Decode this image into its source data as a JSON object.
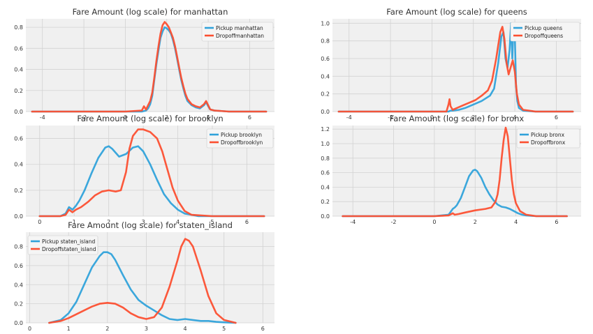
{
  "chart_data": [
    {
      "type": "line",
      "title": "Fare Amount (log scale) for manhattan",
      "xlim": [
        -4.8,
        7.2
      ],
      "ylim": [
        0,
        0.88
      ],
      "xticks": [
        "-4",
        "-2",
        "0",
        "2",
        "4",
        "6"
      ],
      "xtick_values": [
        -4,
        -2,
        0,
        2,
        4,
        6
      ],
      "yticks": [
        "0.0",
        "0.2",
        "0.4",
        "0.6",
        "0.8"
      ],
      "ytick_values": [
        0,
        0.2,
        0.4,
        0.6,
        0.8
      ],
      "legend": "top-right",
      "grid": true,
      "series": [
        {
          "name": "Pickup manhattan",
          "color": "#30a2da",
          "x": [
            -4.5,
            0.0,
            0.8,
            1.0,
            1.1,
            1.2,
            1.3,
            1.4,
            1.5,
            1.6,
            1.7,
            1.8,
            1.9,
            2.0,
            2.1,
            2.2,
            2.3,
            2.4,
            2.5,
            2.6,
            2.7,
            2.8,
            2.9,
            3.0,
            3.2,
            3.4,
            3.6,
            3.8,
            3.9,
            4.0,
            4.1,
            4.3,
            5.0,
            6.8
          ],
          "y": [
            0,
            0,
            0,
            0.01,
            0.03,
            0.07,
            0.15,
            0.3,
            0.45,
            0.58,
            0.7,
            0.76,
            0.8,
            0.79,
            0.77,
            0.74,
            0.68,
            0.6,
            0.5,
            0.4,
            0.3,
            0.22,
            0.15,
            0.1,
            0.06,
            0.04,
            0.03,
            0.06,
            0.09,
            0.05,
            0.02,
            0.01,
            0,
            0
          ]
        },
        {
          "name": "Dropoffmanhattan",
          "color": "#fc4f30",
          "x": [
            -4.5,
            0.0,
            0.8,
            0.9,
            1.0,
            1.1,
            1.2,
            1.3,
            1.4,
            1.5,
            1.6,
            1.7,
            1.8,
            1.9,
            2.0,
            2.1,
            2.2,
            2.3,
            2.4,
            2.5,
            2.6,
            2.7,
            2.8,
            2.9,
            3.0,
            3.2,
            3.4,
            3.6,
            3.8,
            3.9,
            4.0,
            4.1,
            4.3,
            5.0,
            6.8
          ],
          "y": [
            0,
            0,
            0.01,
            0.05,
            0.02,
            0.06,
            0.1,
            0.18,
            0.32,
            0.48,
            0.62,
            0.74,
            0.82,
            0.85,
            0.83,
            0.8,
            0.75,
            0.7,
            0.62,
            0.52,
            0.42,
            0.32,
            0.24,
            0.17,
            0.12,
            0.07,
            0.05,
            0.04,
            0.07,
            0.1,
            0.06,
            0.02,
            0.01,
            0,
            0
          ]
        }
      ]
    },
    {
      "type": "line",
      "title": "Fare Amount (log scale) for queens",
      "xlim": [
        -4.8,
        7.2
      ],
      "ylim": [
        0,
        1.05
      ],
      "xticks": [
        "-4",
        "-2",
        "0",
        "2",
        "4",
        "6"
      ],
      "xtick_values": [
        -4,
        -2,
        0,
        2,
        4,
        6
      ],
      "yticks": [
        "0.0",
        "0.2",
        "0.4",
        "0.6",
        "0.8",
        "1.0"
      ],
      "ytick_values": [
        0,
        0.2,
        0.4,
        0.6,
        0.8,
        1.0
      ],
      "legend": "top-right",
      "grid": true,
      "series": [
        {
          "name": "Pickup queens",
          "color": "#30a2da",
          "x": [
            -4.5,
            0.0,
            0.8,
            0.9,
            1.0,
            1.3,
            1.6,
            2.0,
            2.4,
            2.8,
            3.0,
            3.2,
            3.35,
            3.45,
            3.55,
            3.65,
            3.75,
            3.82,
            3.88,
            3.94,
            4.0,
            4.06,
            4.12,
            4.2,
            4.4,
            5.0,
            6.8
          ],
          "y": [
            0,
            0,
            0,
            0.01,
            0.01,
            0.02,
            0.04,
            0.08,
            0.12,
            0.18,
            0.26,
            0.55,
            0.85,
            0.9,
            0.6,
            0.5,
            0.7,
            1.0,
            0.6,
            1.0,
            0.85,
            0.3,
            0.12,
            0.04,
            0.01,
            0,
            0
          ]
        },
        {
          "name": "Dropoffqueens",
          "color": "#fc4f30",
          "x": [
            -4.5,
            0.0,
            0.7,
            0.8,
            0.85,
            0.9,
            1.0,
            1.2,
            1.5,
            1.8,
            2.1,
            2.4,
            2.7,
            2.9,
            3.1,
            3.2,
            3.3,
            3.4,
            3.5,
            3.6,
            3.7,
            3.8,
            3.9,
            4.0,
            4.1,
            4.2,
            4.4,
            5.0,
            6.8
          ],
          "y": [
            0,
            0,
            0,
            0.08,
            0.14,
            0.06,
            0.02,
            0.04,
            0.07,
            0.1,
            0.13,
            0.18,
            0.24,
            0.35,
            0.6,
            0.75,
            0.9,
            0.96,
            0.82,
            0.55,
            0.42,
            0.5,
            0.58,
            0.45,
            0.2,
            0.08,
            0.02,
            0,
            0
          ]
        }
      ]
    },
    {
      "type": "line",
      "title": "Fare Amount (log scale) for brooklyn",
      "xlim": [
        -0.4,
        6.8
      ],
      "ylim": [
        0,
        0.7
      ],
      "xticks": [
        "0",
        "1",
        "2",
        "3",
        "4",
        "5",
        "6"
      ],
      "xtick_values": [
        0,
        1,
        2,
        3,
        4,
        5,
        6
      ],
      "yticks": [
        "0.0",
        "0.2",
        "0.4",
        "0.6"
      ],
      "ytick_values": [
        0,
        0.2,
        0.4,
        0.6
      ],
      "legend": "top-right",
      "grid": true,
      "series": [
        {
          "name": "Pickup brooklyn",
          "color": "#30a2da",
          "x": [
            0.0,
            0.6,
            0.75,
            0.85,
            0.95,
            1.05,
            1.15,
            1.3,
            1.5,
            1.7,
            1.9,
            2.0,
            2.1,
            2.3,
            2.5,
            2.7,
            2.85,
            3.0,
            3.2,
            3.4,
            3.6,
            3.8,
            4.0,
            4.2,
            4.4,
            4.6,
            5.0,
            6.5
          ],
          "y": [
            0,
            0,
            0.02,
            0.07,
            0.05,
            0.08,
            0.12,
            0.2,
            0.33,
            0.45,
            0.53,
            0.54,
            0.52,
            0.46,
            0.48,
            0.53,
            0.54,
            0.5,
            0.4,
            0.28,
            0.17,
            0.1,
            0.05,
            0.02,
            0.01,
            0,
            0,
            0
          ]
        },
        {
          "name": "Dropoffbrooklyn",
          "color": "#fc4f30",
          "x": [
            0.0,
            0.6,
            0.75,
            0.85,
            0.95,
            1.05,
            1.2,
            1.4,
            1.6,
            1.8,
            2.0,
            2.2,
            2.35,
            2.5,
            2.6,
            2.7,
            2.85,
            3.0,
            3.2,
            3.4,
            3.55,
            3.7,
            3.85,
            4.0,
            4.2,
            4.4,
            5.0,
            6.5
          ],
          "y": [
            0,
            0,
            0.01,
            0.05,
            0.03,
            0.05,
            0.07,
            0.11,
            0.16,
            0.19,
            0.2,
            0.19,
            0.2,
            0.34,
            0.52,
            0.62,
            0.67,
            0.67,
            0.65,
            0.6,
            0.5,
            0.36,
            0.22,
            0.12,
            0.04,
            0.01,
            0,
            0
          ]
        }
      ]
    },
    {
      "type": "line",
      "title": "Fare Amount (log scale) for bronx",
      "xlim": [
        -5.0,
        7.2
      ],
      "ylim": [
        0,
        1.25
      ],
      "xticks": [
        "-4",
        "-2",
        "0",
        "2",
        "4",
        "6"
      ],
      "xtick_values": [
        -4,
        -2,
        0,
        2,
        4,
        6
      ],
      "yticks": [
        "0.0",
        "0.2",
        "0.4",
        "0.6",
        "0.8",
        "1.0",
        "1.2"
      ],
      "ytick_values": [
        0,
        0.2,
        0.4,
        0.6,
        0.8,
        1.0,
        1.2
      ],
      "legend": "top-right",
      "grid": true,
      "series": [
        {
          "name": "Pickup bronx",
          "color": "#30a2da",
          "x": [
            -4.5,
            0.0,
            0.7,
            0.9,
            1.0,
            1.1,
            1.3,
            1.5,
            1.7,
            1.9,
            2.0,
            2.1,
            2.3,
            2.5,
            2.7,
            2.9,
            3.1,
            3.3,
            3.5,
            3.7,
            3.9,
            4.1,
            4.3,
            4.5,
            5.0,
            6.5
          ],
          "y": [
            0,
            0,
            0.02,
            0.1,
            0.12,
            0.15,
            0.25,
            0.4,
            0.55,
            0.63,
            0.64,
            0.62,
            0.53,
            0.4,
            0.3,
            0.22,
            0.16,
            0.13,
            0.12,
            0.1,
            0.07,
            0.04,
            0.02,
            0.01,
            0,
            0
          ]
        },
        {
          "name": "Dropoffbronx",
          "color": "#fc4f30",
          "x": [
            -4.5,
            0.0,
            0.7,
            0.9,
            1.0,
            1.2,
            1.5,
            2.0,
            2.5,
            2.8,
            3.0,
            3.1,
            3.2,
            3.3,
            3.4,
            3.5,
            3.6,
            3.7,
            3.8,
            3.9,
            4.0,
            4.2,
            4.5,
            5.0,
            6.5
          ],
          "y": [
            0,
            0,
            0.01,
            0.04,
            0.02,
            0.03,
            0.05,
            0.08,
            0.1,
            0.12,
            0.2,
            0.3,
            0.5,
            0.8,
            1.05,
            1.22,
            1.1,
            0.8,
            0.5,
            0.3,
            0.18,
            0.07,
            0.02,
            0,
            0
          ]
        }
      ]
    },
    {
      "type": "line",
      "title": "Fare Amount (log scale) for staten_island",
      "xlim": [
        -0.1,
        6.3
      ],
      "ylim": [
        0,
        0.95
      ],
      "xticks": [
        "0",
        "1",
        "2",
        "3",
        "4",
        "5",
        "6"
      ],
      "xtick_values": [
        0,
        1,
        2,
        3,
        4,
        5,
        6
      ],
      "yticks": [
        "0.0",
        "0.2",
        "0.4",
        "0.6",
        "0.8"
      ],
      "ytick_values": [
        0,
        0.2,
        0.4,
        0.6,
        0.8
      ],
      "legend": "top-left",
      "grid": true,
      "series": [
        {
          "name": "Pickup staten_island",
          "color": "#30a2da",
          "x": [
            0.5,
            0.8,
            1.0,
            1.2,
            1.4,
            1.6,
            1.8,
            1.9,
            2.0,
            2.1,
            2.2,
            2.4,
            2.6,
            2.8,
            3.0,
            3.2,
            3.4,
            3.6,
            3.8,
            4.0,
            4.2,
            4.4,
            4.6,
            4.8,
            5.0,
            5.3
          ],
          "y": [
            0,
            0.03,
            0.1,
            0.22,
            0.4,
            0.58,
            0.7,
            0.74,
            0.74,
            0.72,
            0.66,
            0.5,
            0.35,
            0.24,
            0.18,
            0.13,
            0.08,
            0.04,
            0.03,
            0.04,
            0.03,
            0.02,
            0.02,
            0.01,
            0.005,
            0
          ]
        },
        {
          "name": "Dropoffstaten_island",
          "color": "#fc4f30",
          "x": [
            0.5,
            0.8,
            1.0,
            1.2,
            1.4,
            1.6,
            1.8,
            2.0,
            2.2,
            2.4,
            2.6,
            2.8,
            3.0,
            3.2,
            3.4,
            3.6,
            3.8,
            3.9,
            4.0,
            4.1,
            4.2,
            4.4,
            4.6,
            4.8,
            5.0,
            5.3
          ],
          "y": [
            0,
            0.02,
            0.05,
            0.09,
            0.13,
            0.17,
            0.2,
            0.21,
            0.2,
            0.16,
            0.1,
            0.06,
            0.04,
            0.06,
            0.16,
            0.38,
            0.65,
            0.8,
            0.88,
            0.86,
            0.8,
            0.55,
            0.28,
            0.1,
            0.03,
            0
          ]
        }
      ]
    }
  ]
}
